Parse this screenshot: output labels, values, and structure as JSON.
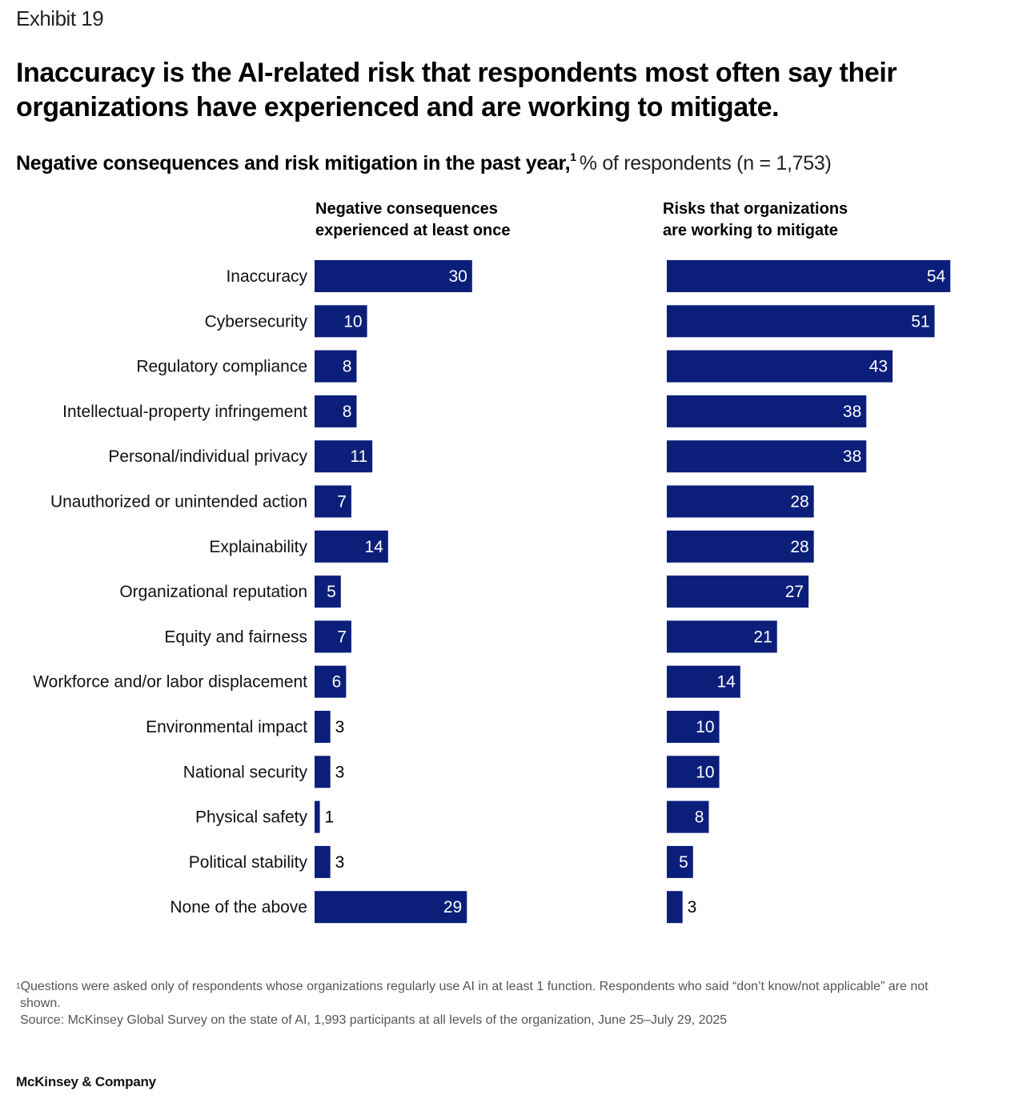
{
  "exhibit_label": "Exhibit 19",
  "headline": "Inaccuracy is the AI-related risk that respondents most often say their organizations have experienced and are working to mitigate.",
  "subtitle": {
    "bold": "Negative consequences and risk mitigation in the past year,",
    "footnote_mark": "1",
    "unit": "% of respondents (n = 1,753)"
  },
  "colors": {
    "bar": "#0b1f7a",
    "label_inside": "#ffffff",
    "label_outside": "#000000"
  },
  "chart_data": {
    "type": "bar",
    "orientation": "horizontal",
    "categories": [
      "Inaccuracy",
      "Cybersecurity",
      "Regulatory compliance",
      "Intellectual-property infringement",
      "Personal/individual privacy",
      "Unauthorized or unintended action",
      "Explainability",
      "Organizational reputation",
      "Equity and fairness",
      "Workforce and/or labor displacement",
      "Environmental impact",
      "National security",
      "Physical safety",
      "Political stability",
      "None of the above"
    ],
    "series": [
      {
        "name": "Negative consequences experienced at least once",
        "header_lines": [
          "Negative consequences",
          "experienced at least once"
        ],
        "values": [
          30,
          10,
          8,
          8,
          11,
          7,
          14,
          5,
          7,
          6,
          3,
          3,
          1,
          3,
          29
        ]
      },
      {
        "name": "Risks that organizations are working to mitigate",
        "header_lines": [
          "Risks that organizations",
          "are working to mitigate"
        ],
        "values": [
          54,
          51,
          43,
          38,
          38,
          28,
          28,
          27,
          21,
          14,
          10,
          10,
          8,
          5,
          3
        ]
      }
    ],
    "title": "Negative consequences and risk mitigation in the past year",
    "xlabel": "% of respondents",
    "ylabel": "",
    "xlim": [
      0,
      100
    ]
  },
  "footnotes": {
    "mark": "1",
    "note_line1": "Questions were asked only of respondents whose organizations regularly use AI in at least 1 function. Respondents who said “don’t know/not applicable” are not",
    "note_line2": "shown.",
    "source": "Source: McKinsey Global Survey on the state of AI, 1,993 participants at all levels of the organization, June 25–July 29, 2025"
  },
  "brand": "McKinsey & Company"
}
